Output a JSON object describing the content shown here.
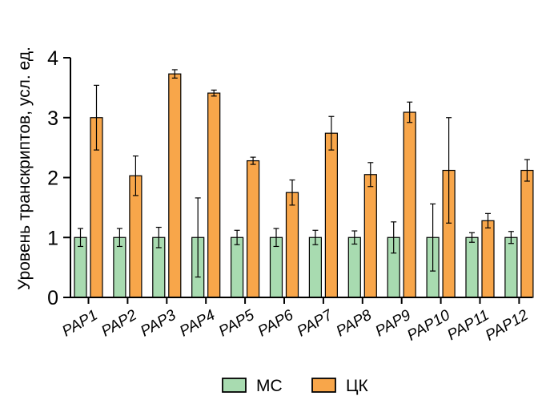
{
  "colors": {
    "series_0": "#a8dbb0",
    "series_1": "#f8a64a",
    "axis": "#000000"
  },
  "chart_data": {
    "type": "bar",
    "ylabel": "Уровень транскриптов, усл. ед.",
    "ylim": [
      0,
      4
    ],
    "yticks": [
      "0",
      "1",
      "2",
      "3",
      "4"
    ],
    "grid": false,
    "legend_position": "bottom",
    "categories": [
      "PAP1",
      "PAP2",
      "PAP3",
      "PAP4",
      "PAP5",
      "PAP6",
      "PAP7",
      "PAP8",
      "PAP9",
      "PAP10",
      "PAP11",
      "PAP12"
    ],
    "series": [
      {
        "name": "МС",
        "values": [
          1,
          1,
          1,
          1,
          1,
          1,
          1,
          1,
          1,
          1,
          1,
          1
        ],
        "errors": [
          0.15,
          0.15,
          0.17,
          0.66,
          0.12,
          0.15,
          0.12,
          0.11,
          0.26,
          0.56,
          0.08,
          0.1
        ]
      },
      {
        "name": "ЦК",
        "values": [
          3.0,
          2.03,
          3.73,
          3.41,
          2.28,
          1.75,
          2.74,
          2.05,
          3.09,
          2.12,
          1.28,
          2.12
        ],
        "errors": [
          0.54,
          0.33,
          0.07,
          0.05,
          0.06,
          0.21,
          0.28,
          0.2,
          0.17,
          0.88,
          0.12,
          0.18
        ]
      }
    ]
  }
}
